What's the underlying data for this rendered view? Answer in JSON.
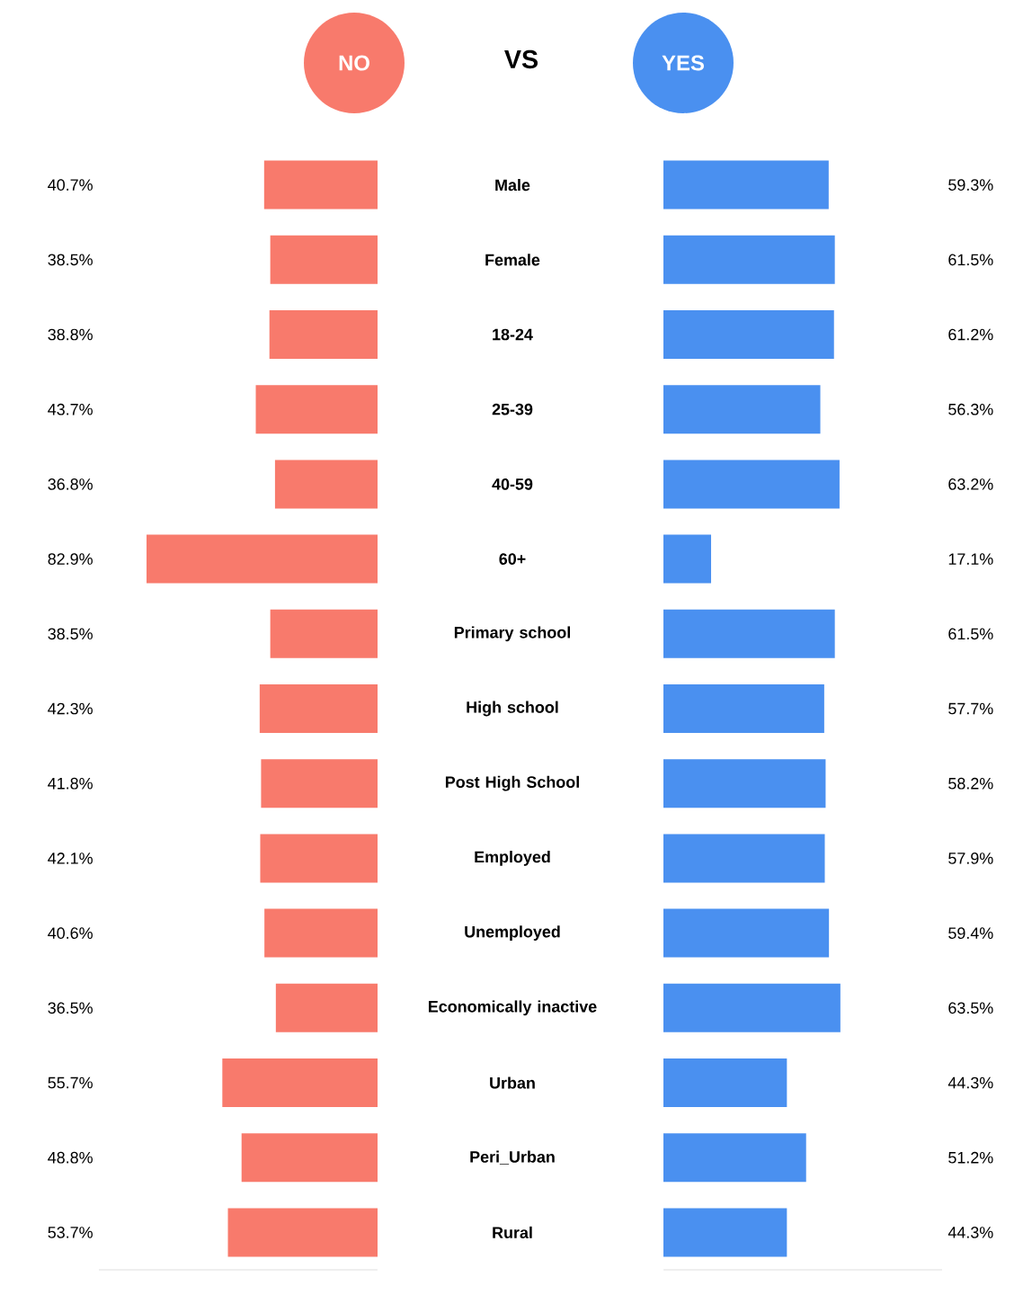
{
  "chart_data": [
    {
      "type": "bar",
      "orientation": "horizontal",
      "tick_labels": "y",
      "xlim": [
        100,
        0
      ],
      "annotations": [
        "VS"
      ],
      "categories": [
        "Male",
        "Female",
        "18-24",
        "25-39",
        "40-59",
        "60+",
        "Primary school",
        "High school",
        "Post High School",
        "Employed",
        "Unemployed",
        "Economically inactive",
        "Urban",
        "Peri_Urban",
        "Rural"
      ],
      "series": [
        {
          "name": "NO",
          "color": "#f87a6c",
          "values": [
            40.7,
            38.5,
            38.8,
            43.7,
            36.8,
            82.9,
            38.5,
            42.3,
            41.8,
            42.1,
            40.6,
            36.5,
            55.7,
            48.8,
            53.7
          ],
          "value_labels": [
            "40.7%",
            "38.5%",
            "38.8%",
            "43.7%",
            "36.8%",
            "82.9%",
            "38.5%",
            "42.3%",
            "41.8%",
            "42.1%",
            "40.6%",
            "36.5%",
            "55.7%",
            "48.8%",
            "53.7%"
          ]
        }
      ]
    },
    {
      "type": "bar",
      "orientation": "horizontal",
      "tick_labels": false,
      "xlim": [
        0,
        100
      ],
      "categories": [
        null,
        null,
        null,
        null,
        null,
        null,
        null,
        null,
        null,
        null,
        null,
        null,
        null,
        null,
        null
      ],
      "series": [
        {
          "name": "YES",
          "color": "#4a90f0",
          "values": [
            59.3,
            61.5,
            61.2,
            56.3,
            63.2,
            17.1,
            61.5,
            57.7,
            58.2,
            57.9,
            59.4,
            63.5,
            44.3,
            51.2,
            44.3
          ],
          "value_labels": [
            "59.3%",
            "61.5%",
            "61.2%",
            "56.3%",
            "63.2%",
            "17.1%",
            "61.5%",
            "57.7%",
            "58.2%",
            "57.9%",
            "59.4%",
            "63.5%",
            "44.3%",
            "51.2%",
            "44.3%"
          ]
        }
      ]
    }
  ]
}
